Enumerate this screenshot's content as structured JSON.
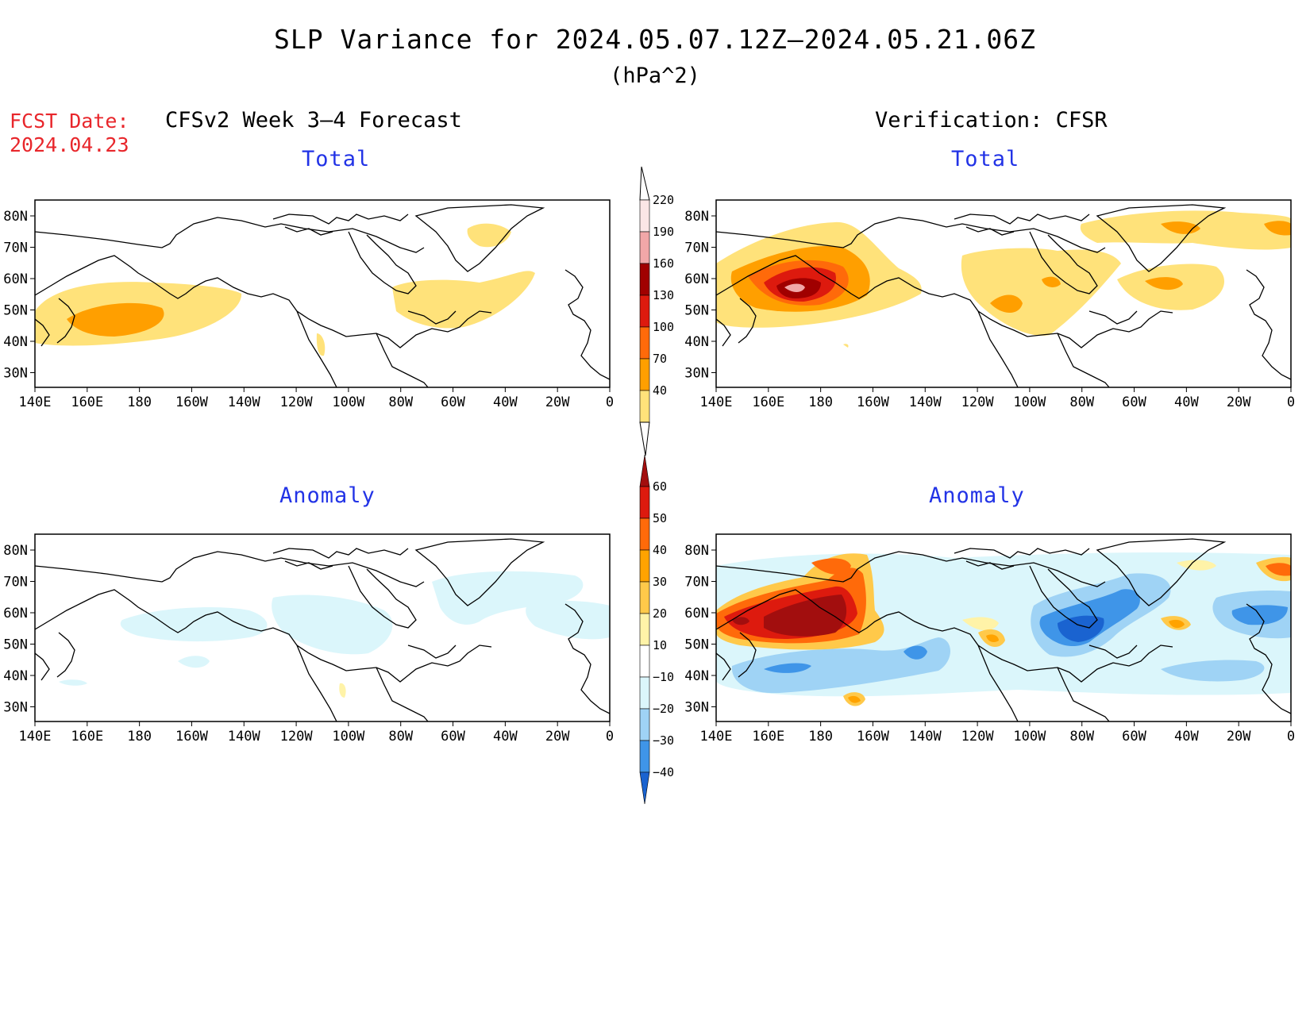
{
  "title": "SLP Variance for 2024.05.07.12Z—2024.05.21.06Z",
  "units": "(hPa^2)",
  "forecast_date": {
    "label": "FCST Date:",
    "value": "2024.04.23"
  },
  "left_heading": "CFSv2 Week 3–4 Forecast",
  "right_heading": "Verification: CFSR",
  "panels": {
    "forecast_total": {
      "title": "Total"
    },
    "verification_total": {
      "title": "Total"
    },
    "forecast_anomaly": {
      "title": "Anomaly"
    },
    "verification_anomaly": {
      "title": "Anomaly"
    }
  },
  "axes": {
    "longitude_labels": [
      "140E",
      "160E",
      "180",
      "160W",
      "140W",
      "120W",
      "100W",
      "80W",
      "60W",
      "40W",
      "20W",
      "0"
    ],
    "latitude_labels": [
      "80N",
      "70N",
      "60N",
      "50N",
      "40N",
      "30N"
    ]
  },
  "colorbars": {
    "total": {
      "labels": [
        "220",
        "190",
        "160",
        "130",
        "100",
        "70",
        "40"
      ],
      "colors": [
        "#fbe6e6",
        "#f1a7a8",
        "#a00000",
        "#dd1a0e",
        "#ff6a0a",
        "#ff9f00",
        "#ffe27a"
      ]
    },
    "anomaly": {
      "labels": [
        "60",
        "50",
        "40",
        "30",
        "20",
        "10",
        "−10",
        "−20",
        "−30",
        "−40"
      ],
      "colors": [
        "#a20e0e",
        "#dd1a0e",
        "#ff6a0a",
        "#ffa300",
        "#ffc94a",
        "#fff3a8",
        "#ffffff",
        "#dbf6fb",
        "#9fd3f5",
        "#3f95e8",
        "#1a63d0"
      ]
    }
  },
  "colors": {
    "forecast_date_red": "#e8262b",
    "subtitle_blue": "#2233e6"
  }
}
